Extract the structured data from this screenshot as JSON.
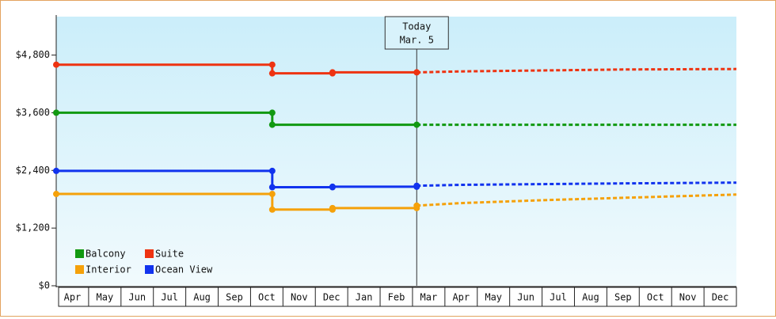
{
  "chart_data": {
    "type": "line",
    "xlim": [
      0,
      21
    ],
    "xticks": [
      {
        "value": 0.5,
        "label": "Apr"
      },
      {
        "value": 1.5,
        "label": "May"
      },
      {
        "value": 2.5,
        "label": "Jun"
      },
      {
        "value": 3.5,
        "label": "Jul"
      },
      {
        "value": 4.5,
        "label": "Aug"
      },
      {
        "value": 5.5,
        "label": "Sep"
      },
      {
        "value": 6.5,
        "label": "Oct"
      },
      {
        "value": 7.5,
        "label": "Nov"
      },
      {
        "value": 8.5,
        "label": "Dec"
      },
      {
        "value": 9.5,
        "label": "Jan"
      },
      {
        "value": 10.5,
        "label": "Feb"
      },
      {
        "value": 11.5,
        "label": "Mar"
      },
      {
        "value": 12.5,
        "label": "Apr"
      },
      {
        "value": 13.5,
        "label": "May"
      },
      {
        "value": 14.5,
        "label": "Jun"
      },
      {
        "value": 15.5,
        "label": "Jul"
      },
      {
        "value": 16.5,
        "label": "Aug"
      },
      {
        "value": 17.5,
        "label": "Sep"
      },
      {
        "value": 18.5,
        "label": "Oct"
      },
      {
        "value": 19.5,
        "label": "Nov"
      },
      {
        "value": 20.5,
        "label": "Dec"
      }
    ],
    "ylim": [
      0,
      5600
    ],
    "yticks": [
      {
        "value": 0,
        "label": "$0"
      },
      {
        "value": 1200,
        "label": "$1,200"
      },
      {
        "value": 2400,
        "label": "$2,400"
      },
      {
        "value": 3600,
        "label": "$3,600"
      },
      {
        "value": 4800,
        "label": "$4,800"
      }
    ],
    "annotation": {
      "x": 11.13,
      "lines": [
        "Today",
        "Mar. 5"
      ]
    },
    "series": [
      {
        "name": "Balcony",
        "color": "#119911",
        "x": [
          0,
          6.67,
          11.13
        ],
        "values": [
          3600,
          3350,
          3350
        ],
        "forecast": {
          "x": [
            11.13,
            21
          ],
          "values": [
            3350,
            3350
          ]
        }
      },
      {
        "name": "Suite",
        "color": "#ee3311",
        "x": [
          0,
          6.67,
          8.53,
          11.13
        ],
        "values": [
          4600,
          4420,
          4440,
          4440
        ],
        "forecast": {
          "x": [
            11.13,
            12.5,
            15,
            17.5,
            21
          ],
          "values": [
            4440,
            4460,
            4480,
            4500,
            4510
          ]
        }
      },
      {
        "name": "Interior",
        "color": "#f5a10a",
        "x": [
          0,
          6.67,
          8.53,
          11.13
        ],
        "values": [
          1910,
          1585,
          1617,
          1667
        ],
        "forecast": {
          "x": [
            11.13,
            12.5,
            15,
            17.5,
            21
          ],
          "values": [
            1667,
            1720,
            1780,
            1830,
            1898
          ]
        }
      },
      {
        "name": "Ocean View",
        "color": "#1133ee",
        "x": [
          0,
          6.67,
          8.53,
          11.13
        ],
        "values": [
          2390,
          2050,
          2060,
          2080
        ],
        "forecast": {
          "x": [
            11.13,
            12.5,
            15,
            17.5,
            21
          ],
          "values": [
            2080,
            2100,
            2115,
            2130,
            2146
          ]
        }
      }
    ]
  }
}
